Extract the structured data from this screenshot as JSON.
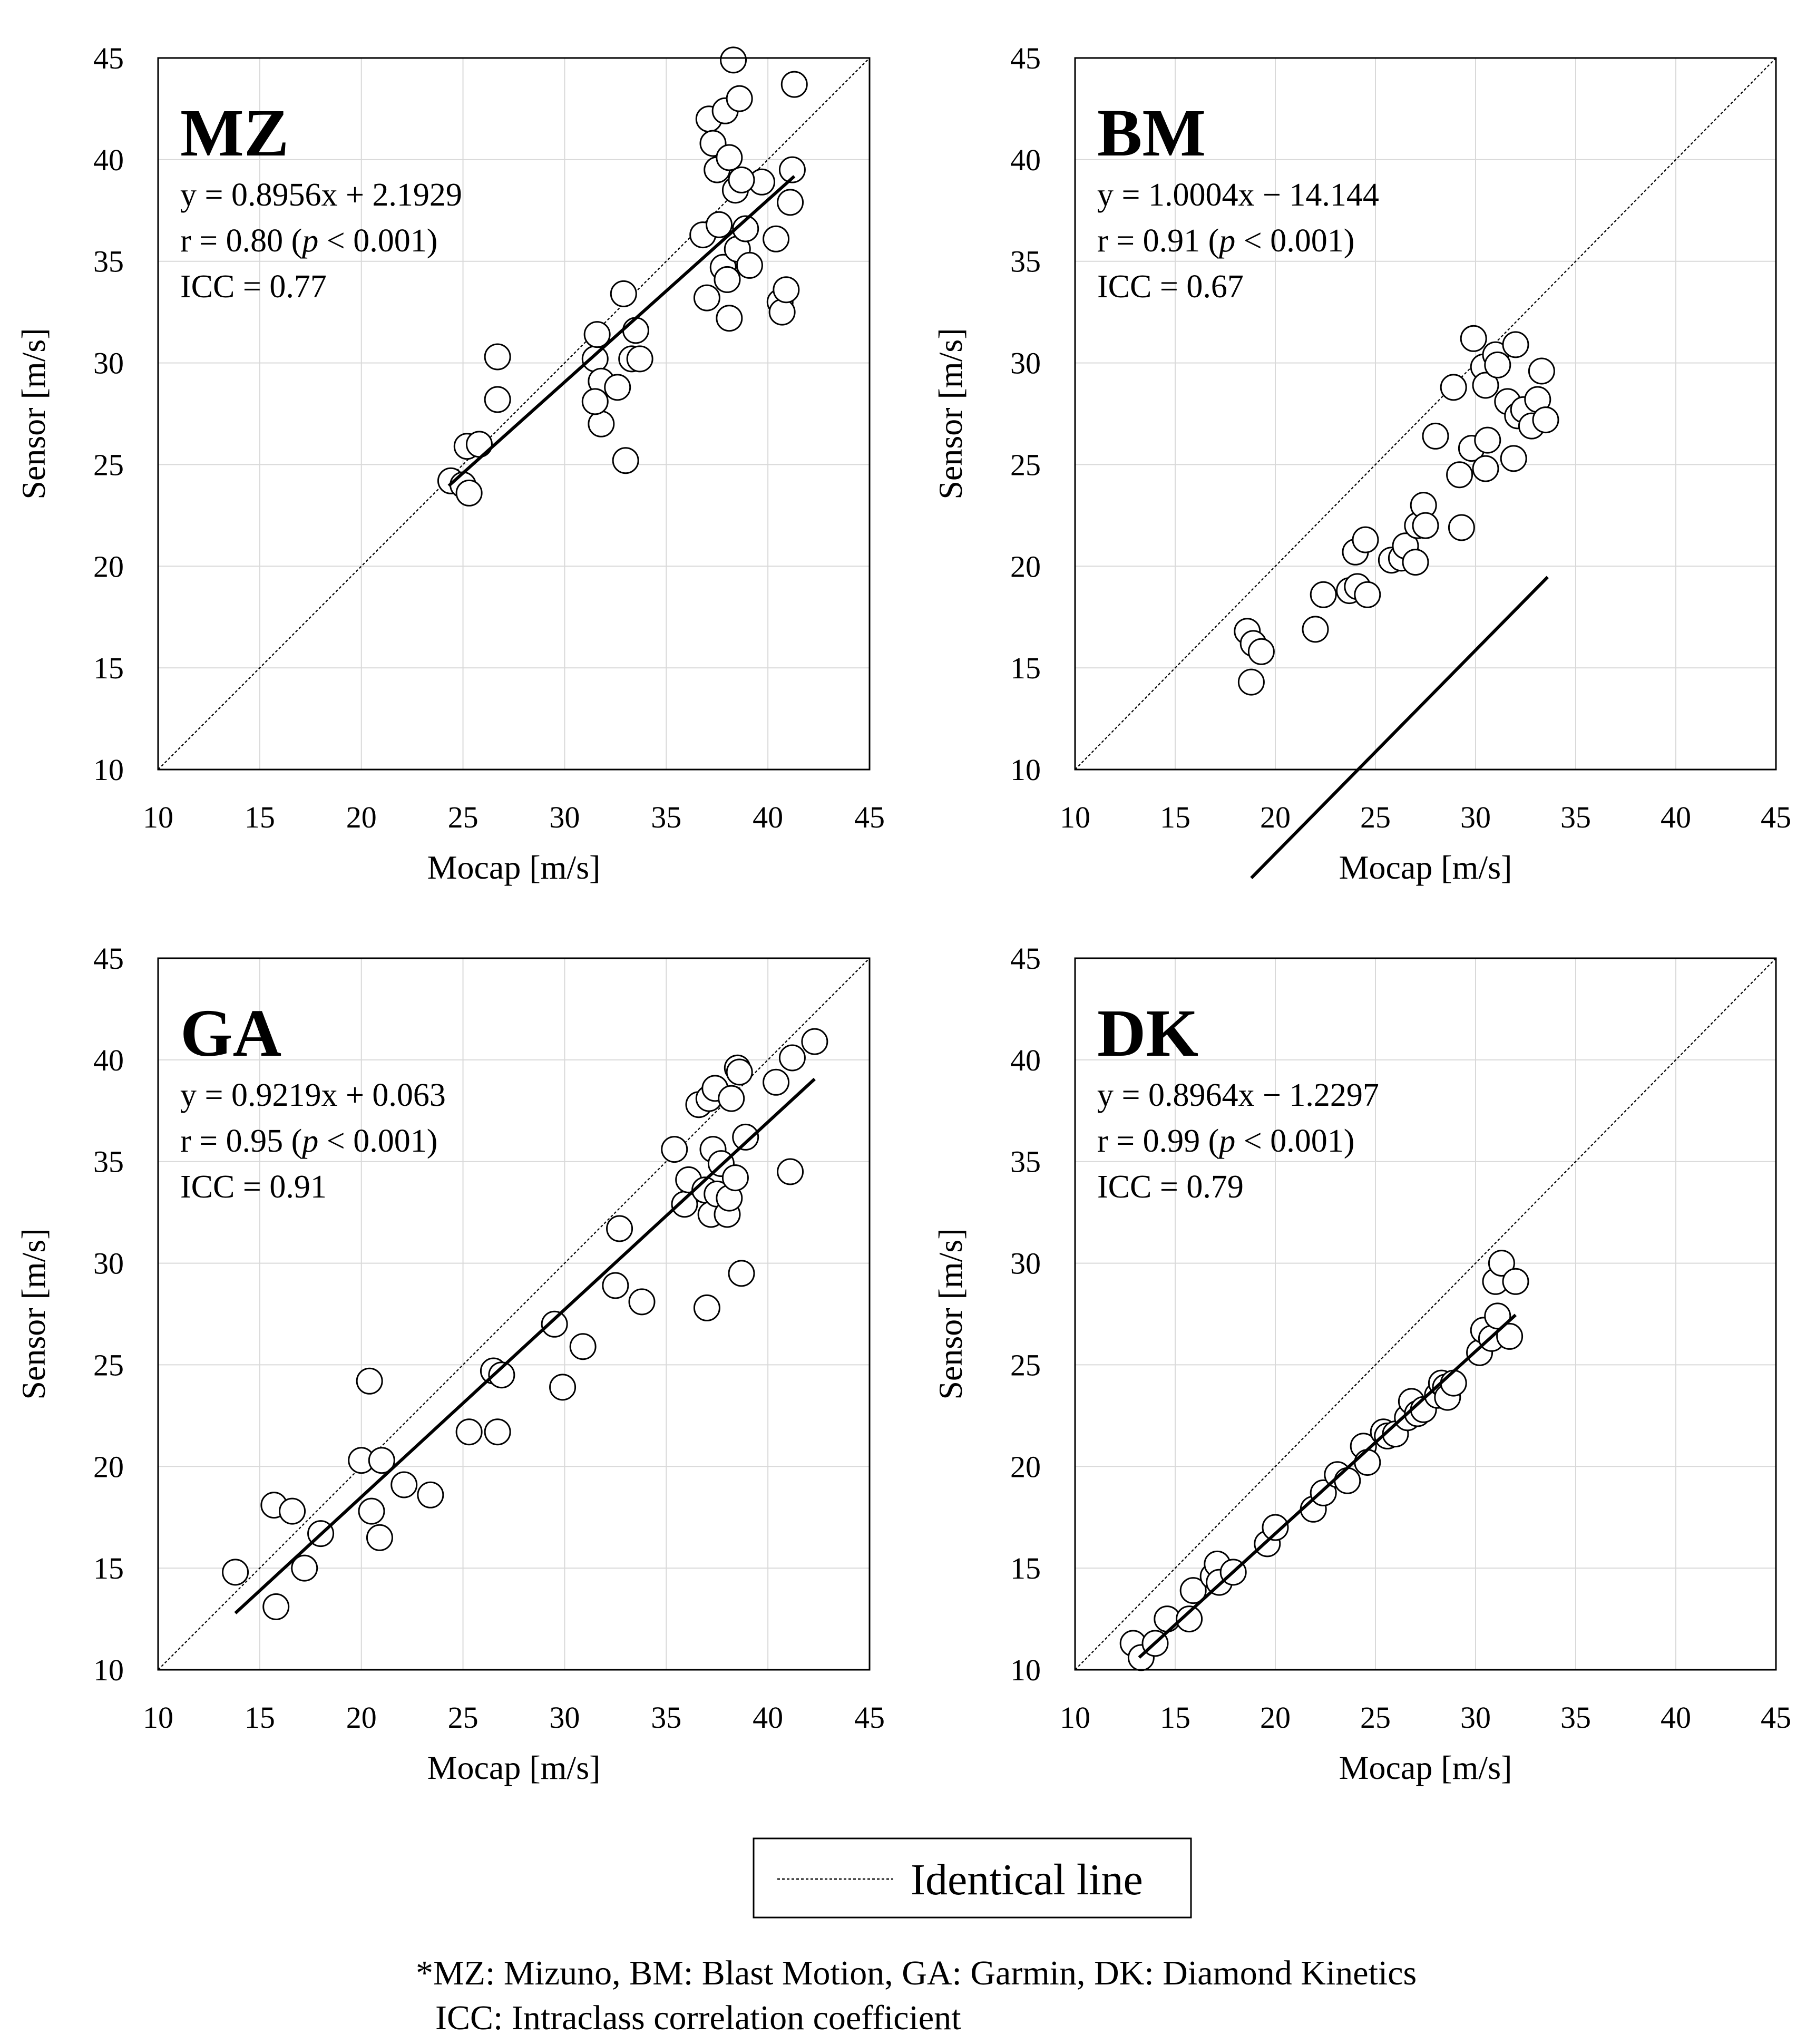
{
  "chart_data": [
    {
      "type": "scatter",
      "label": "MZ",
      "xlabel": "Mocap [m/s]",
      "ylabel": "Sensor [m/s]",
      "xlim": [
        10,
        45
      ],
      "ylim": [
        10,
        45
      ],
      "xticks": [
        "10",
        "15",
        "20",
        "25",
        "30",
        "35",
        "40",
        "45"
      ],
      "yticks": [
        "10",
        "15",
        "20",
        "25",
        "30",
        "35",
        "40",
        "45"
      ],
      "grid": true,
      "equation": "y = 0.8956x  + 2.1929",
      "r_prefix": "r = 0.80  (",
      "p_symbol": "p",
      "r_suffix": " < 0.001)",
      "icc": "ICC = 0.77",
      "fit": {
        "slope": 0.8956,
        "intercept": 2.1929,
        "x_range": [
          24.3,
          41.3
        ]
      },
      "points": [
        [
          24.4,
          24.2
        ],
        [
          25.0,
          24.0
        ],
        [
          25.3,
          23.6
        ],
        [
          25.2,
          25.9
        ],
        [
          25.8,
          26.0
        ],
        [
          26.7,
          30.3
        ],
        [
          26.7,
          28.2
        ],
        [
          31.5,
          30.2
        ],
        [
          31.6,
          31.4
        ],
        [
          31.8,
          29.1
        ],
        [
          31.8,
          27.0
        ],
        [
          31.5,
          28.1
        ],
        [
          32.6,
          28.8
        ],
        [
          33.0,
          25.2
        ],
        [
          32.9,
          33.4
        ],
        [
          33.3,
          30.2
        ],
        [
          33.5,
          31.6
        ],
        [
          33.7,
          30.2
        ],
        [
          36.8,
          36.3
        ],
        [
          37.0,
          33.2
        ],
        [
          37.1,
          42.0
        ],
        [
          37.3,
          40.8
        ],
        [
          37.5,
          39.5
        ],
        [
          37.6,
          36.8
        ],
        [
          37.8,
          34.7
        ],
        [
          37.9,
          42.4
        ],
        [
          38.1,
          40.1
        ],
        [
          38.3,
          44.9
        ],
        [
          38.0,
          34.1
        ],
        [
          38.1,
          32.2
        ],
        [
          38.4,
          38.5
        ],
        [
          38.5,
          35.6
        ],
        [
          38.6,
          43.0
        ],
        [
          38.9,
          36.6
        ],
        [
          39.1,
          34.8
        ],
        [
          39.7,
          38.9
        ],
        [
          40.4,
          36.1
        ],
        [
          40.6,
          33.0
        ],
        [
          40.7,
          32.5
        ],
        [
          40.9,
          33.6
        ],
        [
          41.1,
          37.9
        ],
        [
          41.2,
          39.5
        ],
        [
          41.3,
          43.7
        ],
        [
          38.7,
          39.0
        ]
      ]
    },
    {
      "type": "scatter",
      "label": "BM",
      "xlabel": "Mocap [m/s]",
      "ylabel": "Sensor [m/s]",
      "xlim": [
        10,
        45
      ],
      "ylim": [
        10,
        45
      ],
      "xticks": [
        "10",
        "15",
        "20",
        "25",
        "30",
        "35",
        "40",
        "45"
      ],
      "yticks": [
        "10",
        "15",
        "20",
        "25",
        "30",
        "35",
        "40",
        "45"
      ],
      "grid": true,
      "equation": "y = 1.0004x  − 14.144",
      "r_prefix": "r = 0.91  (",
      "p_symbol": "p",
      "r_suffix": " < 0.001)",
      "icc": "ICC = 0.67",
      "fit": {
        "slope": 1.0004,
        "intercept": -14.144,
        "x_range": [
          18.8,
          33.6
        ]
      },
      "points": [
        [
          18.6,
          16.8
        ],
        [
          18.8,
          14.3
        ],
        [
          18.9,
          16.2
        ],
        [
          19.3,
          15.8
        ],
        [
          22.0,
          16.9
        ],
        [
          22.4,
          18.6
        ],
        [
          23.7,
          18.8
        ],
        [
          24.0,
          20.7
        ],
        [
          24.1,
          19.0
        ],
        [
          24.5,
          21.3
        ],
        [
          24.6,
          18.6
        ],
        [
          25.8,
          20.3
        ],
        [
          26.3,
          20.4
        ],
        [
          26.5,
          21.0
        ],
        [
          27.0,
          20.2
        ],
        [
          27.1,
          22.0
        ],
        [
          27.4,
          23.0
        ],
        [
          27.5,
          22.0
        ],
        [
          28.0,
          26.4
        ],
        [
          28.9,
          28.8
        ],
        [
          29.2,
          24.5
        ],
        [
          29.3,
          21.9
        ],
        [
          29.8,
          25.8
        ],
        [
          29.9,
          31.2
        ],
        [
          30.4,
          29.8
        ],
        [
          30.5,
          28.9
        ],
        [
          30.5,
          24.8
        ],
        [
          30.6,
          26.2
        ],
        [
          31.0,
          30.4
        ],
        [
          31.1,
          29.9
        ],
        [
          31.6,
          28.1
        ],
        [
          31.9,
          25.3
        ],
        [
          32.0,
          30.9
        ],
        [
          32.1,
          27.4
        ],
        [
          32.4,
          27.7
        ],
        [
          32.8,
          26.9
        ],
        [
          33.1,
          28.2
        ],
        [
          33.3,
          29.6
        ],
        [
          33.5,
          27.2
        ]
      ]
    },
    {
      "type": "scatter",
      "label": "GA",
      "xlabel": "Mocap [m/s]",
      "ylabel": "Sensor [m/s]",
      "xlim": [
        10,
        45
      ],
      "ylim": [
        10,
        45
      ],
      "xticks": [
        "10",
        "15",
        "20",
        "25",
        "30",
        "35",
        "40",
        "45"
      ],
      "yticks": [
        "10",
        "15",
        "20",
        "25",
        "30",
        "35",
        "40",
        "45"
      ],
      "grid": true,
      "equation": "y = 0.9219x  + 0.063",
      "r_prefix": "r = 0.95  (",
      "p_symbol": "p",
      "r_suffix": " < 0.001)",
      "icc": "ICC = 0.91",
      "fit": {
        "slope": 0.9219,
        "intercept": 0.063,
        "x_range": [
          13.8,
          42.3
        ]
      },
      "points": [
        [
          13.8,
          14.8
        ],
        [
          15.7,
          18.1
        ],
        [
          15.8,
          13.1
        ],
        [
          16.6,
          17.8
        ],
        [
          17.2,
          15.0
        ],
        [
          18.0,
          16.7
        ],
        [
          20.0,
          20.3
        ],
        [
          20.4,
          24.2
        ],
        [
          20.5,
          17.8
        ],
        [
          20.9,
          16.5
        ],
        [
          21.0,
          20.3
        ],
        [
          22.1,
          19.1
        ],
        [
          23.4,
          18.6
        ],
        [
          25.3,
          21.7
        ],
        [
          26.5,
          24.7
        ],
        [
          26.7,
          21.7
        ],
        [
          26.9,
          24.5
        ],
        [
          29.5,
          27.0
        ],
        [
          29.9,
          23.9
        ],
        [
          30.9,
          25.9
        ],
        [
          32.5,
          28.9
        ],
        [
          32.7,
          31.7
        ],
        [
          33.8,
          28.1
        ],
        [
          35.4,
          35.6
        ],
        [
          35.9,
          32.9
        ],
        [
          36.1,
          34.1
        ],
        [
          36.6,
          37.8
        ],
        [
          36.9,
          33.6
        ],
        [
          37.0,
          27.8
        ],
        [
          37.1,
          38.1
        ],
        [
          37.2,
          32.4
        ],
        [
          37.3,
          35.6
        ],
        [
          37.4,
          38.6
        ],
        [
          37.5,
          33.4
        ],
        [
          37.7,
          34.9
        ],
        [
          38.0,
          32.4
        ],
        [
          38.1,
          33.2
        ],
        [
          38.2,
          38.1
        ],
        [
          38.4,
          34.2
        ],
        [
          38.5,
          39.6
        ],
        [
          38.6,
          39.4
        ],
        [
          38.7,
          29.5
        ],
        [
          38.9,
          36.2
        ],
        [
          40.4,
          38.9
        ],
        [
          41.1,
          34.5
        ],
        [
          41.2,
          40.1
        ],
        [
          42.3,
          40.9
        ]
      ]
    },
    {
      "type": "scatter",
      "label": "DK",
      "xlabel": "Mocap [m/s]",
      "ylabel": "Sensor [m/s]",
      "xlim": [
        10,
        45
      ],
      "ylim": [
        10,
        45
      ],
      "xticks": [
        "10",
        "15",
        "20",
        "25",
        "30",
        "35",
        "40",
        "45"
      ],
      "yticks": [
        "10",
        "15",
        "20",
        "25",
        "30",
        "35",
        "40",
        "45"
      ],
      "grid": true,
      "equation": "y = 0.8964x  − 1.2297",
      "r_prefix": "r = 0.99  (",
      "p_symbol": "p",
      "r_suffix": " < 0.001)",
      "icc": "ICC = 0.79",
      "fit": {
        "slope": 0.8964,
        "intercept": -1.2297,
        "x_range": [
          13.2,
          32.0
        ]
      },
      "points": [
        [
          12.9,
          11.3
        ],
        [
          13.3,
          10.6
        ],
        [
          14.0,
          11.3
        ],
        [
          14.6,
          12.5
        ],
        [
          15.7,
          12.5
        ],
        [
          15.9,
          13.9
        ],
        [
          16.9,
          14.6
        ],
        [
          17.1,
          15.2
        ],
        [
          17.2,
          14.3
        ],
        [
          17.9,
          14.8
        ],
        [
          19.6,
          16.2
        ],
        [
          20.0,
          17.0
        ],
        [
          21.9,
          17.9
        ],
        [
          22.4,
          18.7
        ],
        [
          23.1,
          19.6
        ],
        [
          23.6,
          19.3
        ],
        [
          24.4,
          21.0
        ],
        [
          24.6,
          20.2
        ],
        [
          25.4,
          21.7
        ],
        [
          25.6,
          21.5
        ],
        [
          26.0,
          21.6
        ],
        [
          26.6,
          22.4
        ],
        [
          26.8,
          23.2
        ],
        [
          27.1,
          22.6
        ],
        [
          27.4,
          22.8
        ],
        [
          28.1,
          23.5
        ],
        [
          28.3,
          24.1
        ],
        [
          28.5,
          23.9
        ],
        [
          28.6,
          23.4
        ],
        [
          28.9,
          24.1
        ],
        [
          30.2,
          25.6
        ],
        [
          30.4,
          26.7
        ],
        [
          30.8,
          26.3
        ],
        [
          31.0,
          29.1
        ],
        [
          31.1,
          27.4
        ],
        [
          31.3,
          30.0
        ],
        [
          31.7,
          26.4
        ],
        [
          32.0,
          29.1
        ]
      ]
    }
  ],
  "legend": {
    "label": "Identical line"
  },
  "footnote": {
    "line1": "*MZ: Mizuno, BM: Blast Motion, GA: Garmin, DK: Diamond Kinetics",
    "line2": "ICC: Intraclass correlation coefficient"
  }
}
